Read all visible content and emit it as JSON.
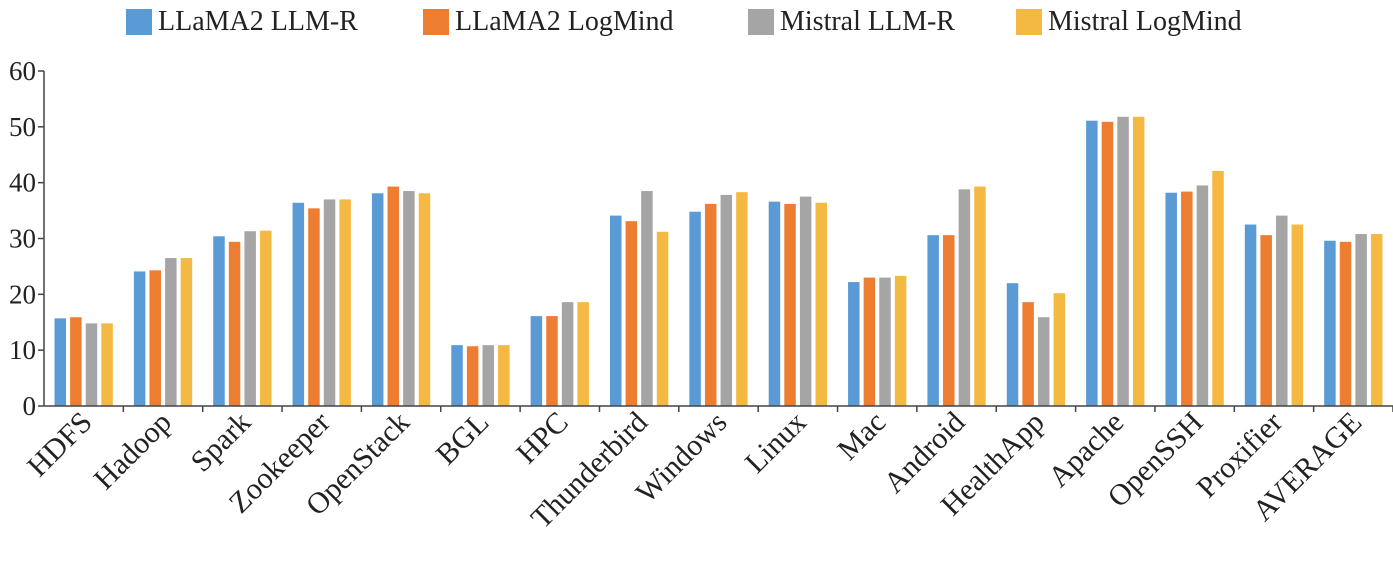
{
  "chart_data": {
    "type": "bar",
    "title": "",
    "xlabel": "",
    "ylabel": "",
    "ylim": [
      0,
      60
    ],
    "yticks": [
      0,
      10,
      20,
      30,
      40,
      50,
      60
    ],
    "yticklabels": [
      "0",
      "10",
      "20",
      "30",
      "40",
      "50",
      "60"
    ],
    "categories": [
      "HDFS",
      "Hadoop",
      "Spark",
      "Zookeeper",
      "OpenStack",
      "BGL",
      "HPC",
      "Thunderbird",
      "Windows",
      "Linux",
      "Mac",
      "Android",
      "HealthApp",
      "Apache",
      "OpenSSH",
      "Proxifier",
      "AVERAGE"
    ],
    "legend_position": "top-center",
    "series": [
      {
        "name": "LLaMA2 LLM-R",
        "color": "#5b9bd5",
        "values": [
          15.7,
          24.1,
          30.4,
          36.4,
          38.1,
          10.9,
          16.1,
          34.1,
          34.8,
          36.6,
          22.2,
          30.6,
          22.0,
          51.1,
          38.2,
          32.5,
          29.6
        ]
      },
      {
        "name": "LLaMA2 LogMind",
        "color": "#ed7d31",
        "values": [
          15.9,
          24.3,
          29.4,
          35.4,
          39.3,
          10.7,
          16.1,
          33.1,
          36.2,
          36.2,
          23.0,
          30.6,
          18.6,
          50.9,
          38.4,
          30.6,
          29.4
        ]
      },
      {
        "name": "Mistral LLM-R",
        "color": "#a5a5a5",
        "values": [
          14.8,
          26.5,
          31.3,
          37.0,
          38.5,
          10.9,
          18.6,
          38.5,
          37.8,
          37.5,
          23.0,
          38.8,
          15.9,
          51.8,
          39.5,
          34.1,
          30.8
        ]
      },
      {
        "name": "Mistral LogMind",
        "color": "#f4b942",
        "values": [
          14.8,
          26.5,
          31.4,
          37.0,
          38.1,
          10.9,
          18.6,
          31.2,
          38.3,
          36.4,
          23.3,
          39.3,
          20.2,
          51.8,
          42.1,
          32.5,
          30.8
        ]
      }
    ]
  }
}
